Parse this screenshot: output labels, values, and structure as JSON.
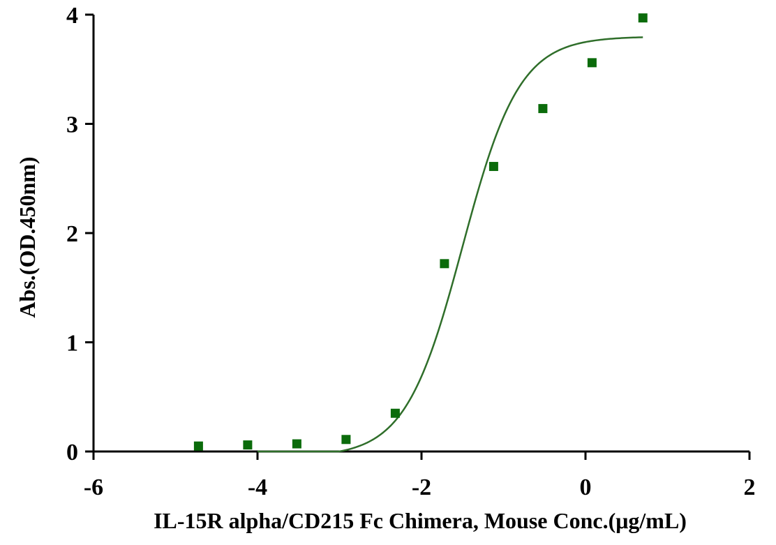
{
  "chart_data": {
    "type": "scatter",
    "title": "",
    "xlabel": "IL-15R alpha/CD215 Fc Chimera, Mouse Conc.(μg/mL)",
    "ylabel": "Abs.(OD.450nm)",
    "xlim": [
      -6,
      2
    ],
    "ylim": [
      0,
      4
    ],
    "x_ticks": [
      -6,
      -4,
      -2,
      0,
      2
    ],
    "y_ticks": [
      0,
      1,
      2,
      3,
      4
    ],
    "grid": false,
    "legend": "none",
    "colors": {
      "points": "#0b6b0b",
      "curve": "#2f6e2a",
      "axis": "#000000"
    },
    "series": [
      {
        "type": "scatter",
        "x": [
          -4.72,
          -4.12,
          -3.52,
          -2.92,
          -2.32,
          -1.72,
          -1.12,
          -0.52,
          0.08,
          0.7
        ],
        "y": [
          0.05,
          0.06,
          0.07,
          0.11,
          0.35,
          1.72,
          2.61,
          3.14,
          3.56,
          3.97
        ]
      }
    ],
    "fit_curve": {
      "type": "four-parameter logistic",
      "bottom": -0.05,
      "top": 3.8,
      "log_ec50": -1.5,
      "hill_slope": 1.25,
      "x_range": [
        -4.0,
        0.7
      ]
    }
  }
}
